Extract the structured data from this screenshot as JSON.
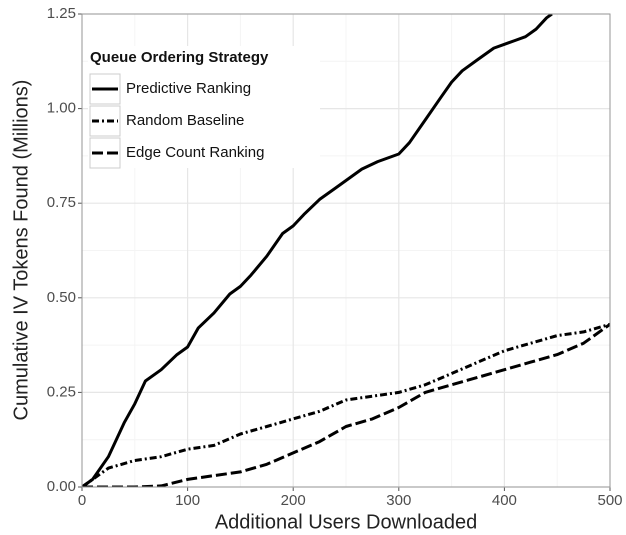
{
  "chart_data": {
    "type": "line",
    "xlabel": "Additional Users Downloaded",
    "ylabel": "Cumulative IV Tokens Found (Millions)",
    "legend_title": "Queue Ordering Strategy",
    "legend": "top-left",
    "grid": true,
    "xlim": [
      0,
      500
    ],
    "ylim": [
      0,
      1.25
    ],
    "xticks": [
      0,
      100,
      200,
      300,
      400,
      500
    ],
    "yticks": [
      {
        "value": 0,
        "label": "0.00"
      },
      {
        "value": 0.25,
        "label": "0.25"
      },
      {
        "value": 0.5,
        "label": "0.50"
      },
      {
        "value": 0.75,
        "label": "0.75"
      },
      {
        "value": 1,
        "label": "1.00"
      },
      {
        "value": 1.25,
        "label": "1.25"
      }
    ],
    "series": [
      {
        "name": "Predictive Ranking",
        "color": "#000000",
        "dash": "none",
        "x": [
          0,
          10,
          25,
          40,
          50,
          60,
          75,
          90,
          100,
          110,
          125,
          140,
          150,
          160,
          175,
          190,
          200,
          210,
          225,
          240,
          250,
          265,
          280,
          300,
          310,
          325,
          340,
          350,
          360,
          375,
          390,
          400,
          410,
          420,
          430,
          440,
          445
        ],
        "values": [
          0,
          0.02,
          0.08,
          0.17,
          0.22,
          0.28,
          0.31,
          0.35,
          0.37,
          0.42,
          0.46,
          0.51,
          0.53,
          0.56,
          0.61,
          0.67,
          0.69,
          0.72,
          0.76,
          0.79,
          0.81,
          0.84,
          0.86,
          0.88,
          0.91,
          0.97,
          1.03,
          1.07,
          1.1,
          1.13,
          1.16,
          1.17,
          1.18,
          1.19,
          1.21,
          1.24,
          1.25
        ]
      },
      {
        "name": "Random Baseline",
        "color": "#000000",
        "dash": "7,3,2,3",
        "x": [
          0,
          10,
          25,
          50,
          75,
          100,
          125,
          150,
          175,
          200,
          225,
          250,
          275,
          300,
          325,
          350,
          375,
          400,
          425,
          450,
          475,
          500
        ],
        "values": [
          0,
          0.02,
          0.05,
          0.07,
          0.08,
          0.1,
          0.11,
          0.14,
          0.16,
          0.18,
          0.2,
          0.23,
          0.24,
          0.25,
          0.27,
          0.3,
          0.33,
          0.36,
          0.38,
          0.4,
          0.41,
          0.43
        ]
      },
      {
        "name": "Edge Count Ranking",
        "color": "#000000",
        "dash": "11,4",
        "x": [
          0,
          25,
          50,
          75,
          100,
          125,
          150,
          175,
          200,
          225,
          250,
          275,
          300,
          325,
          350,
          375,
          400,
          425,
          450,
          475,
          500
        ],
        "values": [
          0,
          0,
          0,
          0.003,
          0.02,
          0.03,
          0.04,
          0.06,
          0.09,
          0.12,
          0.16,
          0.18,
          0.21,
          0.25,
          0.27,
          0.29,
          0.31,
          0.33,
          0.35,
          0.38,
          0.43
        ]
      }
    ]
  }
}
